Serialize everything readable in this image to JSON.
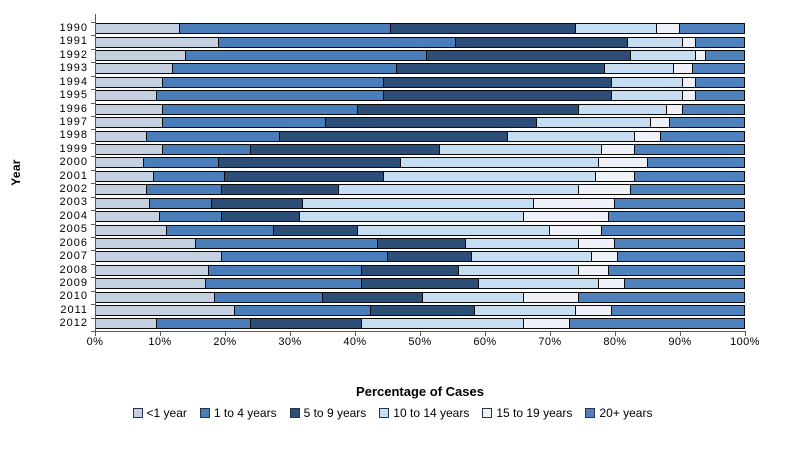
{
  "figure": {
    "background_color": "#ffffff",
    "axis_color": "#595959",
    "segment_border_color": "#0a0a0a"
  },
  "chart_data": {
    "type": "bar",
    "orientation": "horizontal",
    "stacked": true,
    "unit": "percent",
    "xlabel": "Percentage of Cases",
    "ylabel": "Year",
    "xlim": [
      0,
      100
    ],
    "x_tick_labels": [
      "0%",
      "10%",
      "20%",
      "30%",
      "40%",
      "50%",
      "60%",
      "70%",
      "80%",
      "90%",
      "100%"
    ],
    "grid": false,
    "legend_position": "bottom",
    "categories": [
      "1990",
      "1991",
      "1992",
      "1993",
      "1994",
      "1995",
      "1996",
      "1997",
      "1998",
      "1999",
      "2000",
      "2001",
      "2002",
      "2003",
      "2004",
      "2005",
      "2006",
      "2007",
      "2008",
      "2009",
      "2010",
      "2011",
      "2012"
    ],
    "series": [
      {
        "name": "<1 year",
        "color": "#c5d0e0",
        "values": [
          13,
          19,
          14,
          12,
          10.5,
          9.5,
          10.5,
          10.5,
          8,
          10.5,
          7.5,
          9,
          8,
          8.5,
          10,
          11,
          15.5,
          19.5,
          17.5,
          17,
          18.5,
          21.5,
          9.5
        ]
      },
      {
        "name": "1 to 4 years",
        "color": "#4a7ebb",
        "values": [
          32.5,
          36.5,
          37,
          34.5,
          34,
          35,
          30,
          25,
          20.5,
          13.5,
          11.5,
          11,
          11.5,
          9.5,
          9.5,
          16.5,
          28,
          25.5,
          23.5,
          24,
          16.5,
          21,
          14.5
        ]
      },
      {
        "name": "5 to 9 years",
        "color": "#2b4d76",
        "values": [
          28.5,
          26.5,
          31.5,
          32,
          35,
          35,
          34,
          32.5,
          35,
          29,
          28,
          24.5,
          18,
          14,
          12,
          13,
          13.5,
          13,
          15,
          18,
          15.5,
          16,
          17
        ]
      },
      {
        "name": "10 to 14 years",
        "color": "#c6ddf2",
        "values": [
          12.5,
          8.5,
          10,
          10.5,
          11,
          11,
          13.5,
          17.5,
          19.5,
          25,
          30.5,
          32.5,
          37,
          35.5,
          34.5,
          29.5,
          17.5,
          18.5,
          18.5,
          18.5,
          15.5,
          15.5,
          25
        ]
      },
      {
        "name": "15 to 19 years",
        "color": "#eef2f8",
        "values": [
          3.5,
          2,
          1.5,
          3,
          2,
          2,
          2.5,
          3,
          4,
          5,
          7.5,
          6,
          8,
          12.5,
          13,
          8,
          5.5,
          4,
          4.5,
          4,
          8.5,
          5.5,
          7
        ]
      },
      {
        "name": "20+ years",
        "color": "#4f81bd",
        "values": [
          10,
          7.5,
          6,
          8,
          7.5,
          7.5,
          9.5,
          11.5,
          13,
          17,
          15,
          17,
          17.5,
          20,
          21,
          22,
          20,
          19.5,
          21,
          18.5,
          25.5,
          20.5,
          27
        ]
      }
    ]
  }
}
